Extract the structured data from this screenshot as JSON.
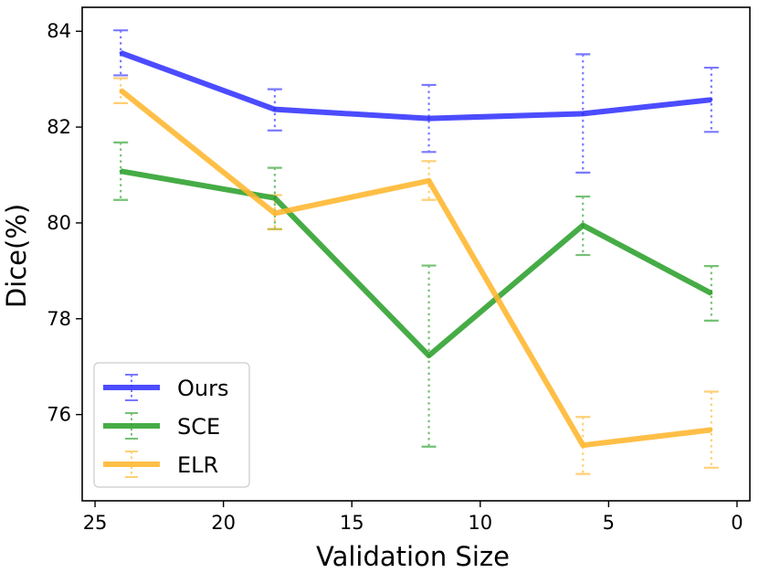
{
  "chart_data": {
    "type": "line",
    "title": "",
    "xlabel": "Validation Size",
    "ylabel": "Dice(%)",
    "xlim": [
      25.5,
      -0.5
    ],
    "ylim": [
      74.2,
      84.5
    ],
    "x_inverted": true,
    "x": [
      24,
      18,
      12,
      6,
      1
    ],
    "xticks": [
      25,
      20,
      15,
      10,
      5,
      0
    ],
    "xtick_labels": [
      "25",
      "20",
      "15",
      "10",
      "5",
      "0"
    ],
    "yticks": [
      76,
      78,
      80,
      82,
      84
    ],
    "ytick_labels": [
      "76",
      "78",
      "80",
      "82",
      "84"
    ],
    "grid": false,
    "legend_position": "lower-left",
    "series": [
      {
        "name": "Ours",
        "color": "#3333ff",
        "values": [
          83.55,
          82.37,
          82.18,
          82.28,
          82.57
        ],
        "err_low": [
          83.08,
          81.93,
          81.48,
          81.05,
          81.9
        ],
        "err_high": [
          84.02,
          82.79,
          82.88,
          83.52,
          83.24
        ]
      },
      {
        "name": "SCE",
        "color": "#2ca02c",
        "values": [
          81.08,
          80.52,
          77.23,
          79.95,
          78.53
        ],
        "err_low": [
          80.48,
          79.87,
          75.33,
          79.33,
          77.96
        ],
        "err_high": [
          81.68,
          81.15,
          79.11,
          80.55,
          79.1
        ]
      },
      {
        "name": "ELR",
        "color": "#ffb62e",
        "values": [
          82.77,
          80.2,
          80.88,
          75.36,
          75.68
        ],
        "err_low": [
          82.5,
          79.87,
          80.48,
          74.76,
          74.89
        ],
        "err_high": [
          83.02,
          80.58,
          81.29,
          75.95,
          76.48
        ]
      }
    ]
  }
}
